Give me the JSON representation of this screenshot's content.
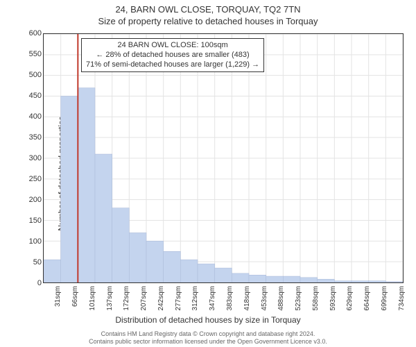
{
  "title": "24, BARN OWL CLOSE, TORQUAY, TQ2 7TN",
  "subtitle": "Size of property relative to detached houses in Torquay",
  "ylabel": "Number of detached properties",
  "xlabel": "Distribution of detached houses by size in Torquay",
  "chart": {
    "type": "histogram",
    "ylim": [
      0,
      600
    ],
    "yticks": [
      0,
      50,
      100,
      150,
      200,
      250,
      300,
      350,
      400,
      450,
      500,
      550,
      600
    ],
    "xticks_labels": [
      "31sqm",
      "66sqm",
      "101sqm",
      "137sqm",
      "172sqm",
      "207sqm",
      "242sqm",
      "277sqm",
      "312sqm",
      "347sqm",
      "383sqm",
      "418sqm",
      "453sqm",
      "488sqm",
      "523sqm",
      "558sqm",
      "593sqm",
      "629sqm",
      "664sqm",
      "699sqm",
      "734sqm"
    ],
    "bar_color": "#c4d4ee",
    "bar_stroke": "#aab9d8",
    "grid_color": "#e3e3e3",
    "background_color": "#ffffff",
    "marker_line_color": "#c0392b",
    "marker_x_index": 2,
    "values": [
      55,
      450,
      470,
      310,
      180,
      120,
      100,
      75,
      55,
      45,
      35,
      22,
      18,
      15,
      15,
      12,
      8,
      4,
      4,
      4,
      2
    ]
  },
  "annotation": {
    "line1": "24 BARN OWL CLOSE: 100sqm",
    "line2": "← 28% of detached houses are smaller (483)",
    "line3": "71% of semi-detached houses are larger (1,229) →"
  },
  "footer": {
    "line1": "Contains HM Land Registry data © Crown copyright and database right 2024.",
    "line2": "Contains public sector information licensed under the Open Government Licence v3.0."
  }
}
